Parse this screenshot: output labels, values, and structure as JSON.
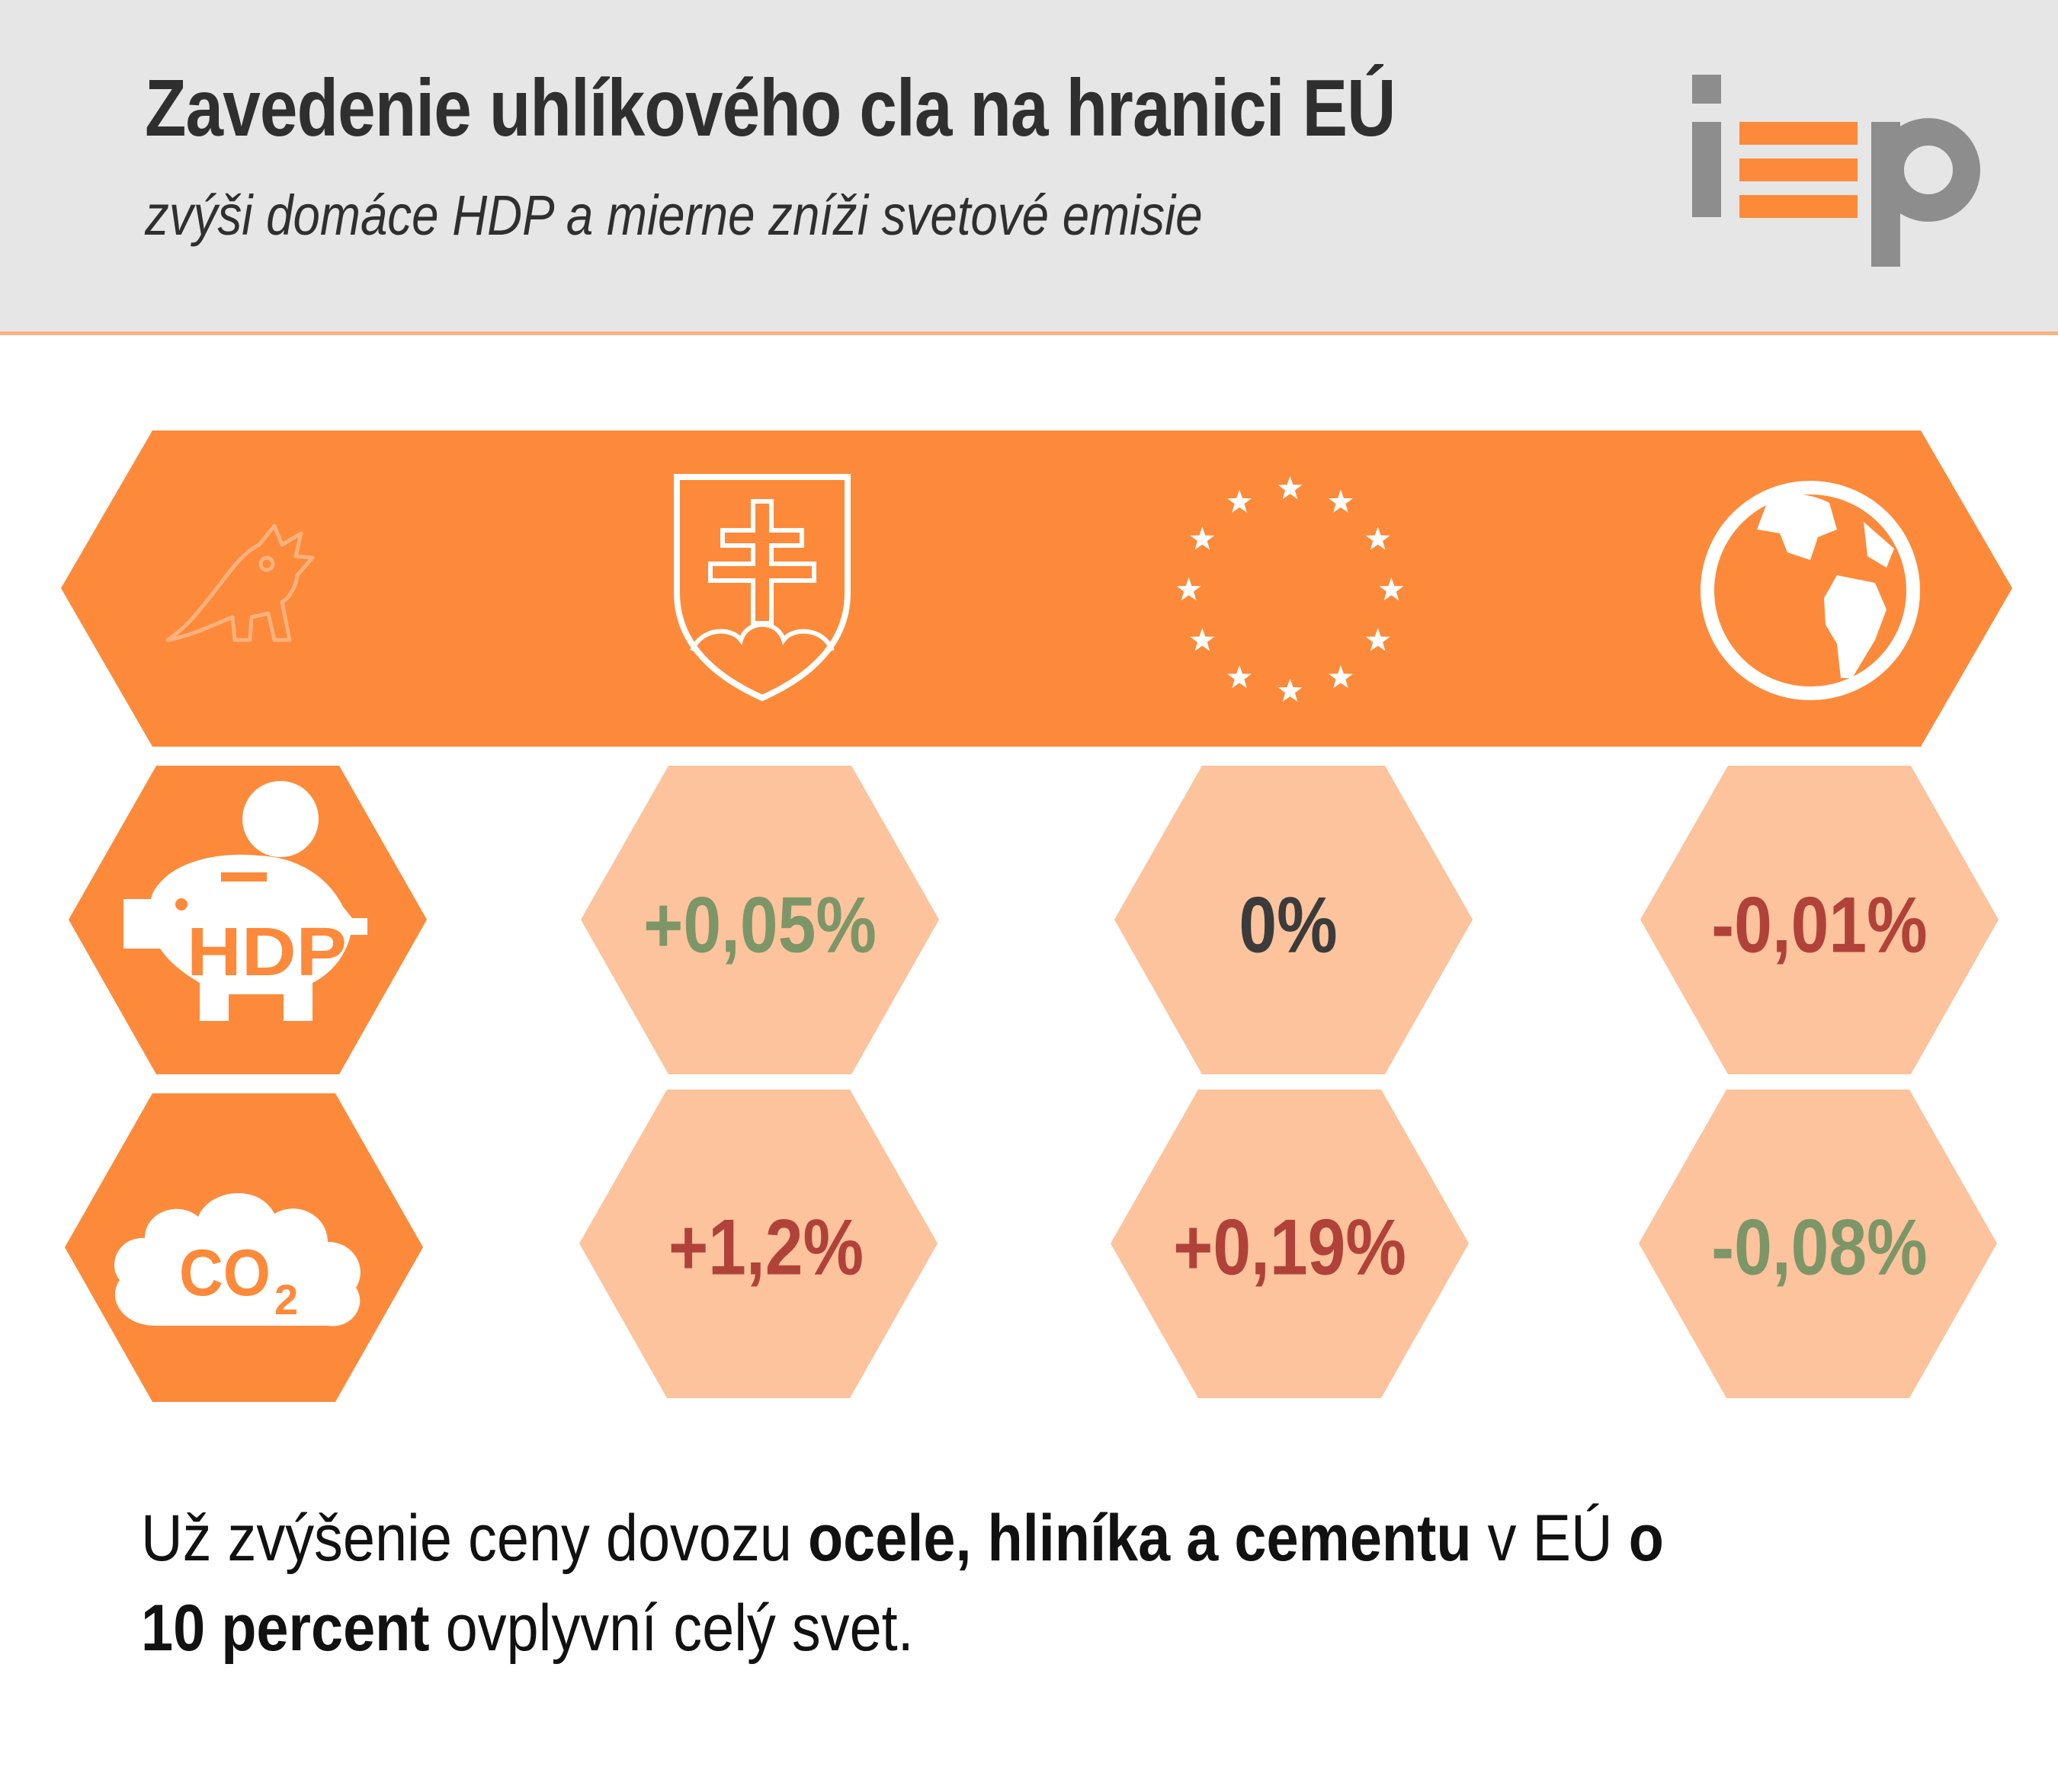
{
  "header": {
    "title": "Zavedenie uhlíkového cla na hranici EÚ",
    "subtitle": "zvýši domáce HDP a mierne zníži svetové emisie"
  },
  "colors": {
    "orange": "#fd8a3a",
    "light_orange": "#fdc39c",
    "header_bg": "#e6e6e6",
    "positive_green": "#7d9667",
    "negative_red": "#b0423a",
    "neutral": "#3b3b3b"
  },
  "band": {
    "icons": [
      "dinosaur-icon",
      "slovak-coat-of-arms-icon",
      "eu-stars-icon",
      "globe-icon"
    ]
  },
  "rows": {
    "gdp": {
      "label": "HDP",
      "icon": "piggy-bank-icon",
      "values": {
        "slovakia": "+0,05%",
        "eu": "0%",
        "world": "-0,01%"
      }
    },
    "co2": {
      "label_main": "CO",
      "label_sub": "2",
      "icon": "cloud-icon",
      "values": {
        "slovakia": "+1,2%",
        "eu": "+0,19%",
        "world": "-0,08%"
      }
    }
  },
  "footer": {
    "p1": "Už zvýšenie ceny dovozu ",
    "b1": "ocele, hliníka a cementu",
    "p2": " v EÚ ",
    "b2": "o",
    "b3": "10 percent",
    "p3": " ovplyvní celý svet."
  }
}
